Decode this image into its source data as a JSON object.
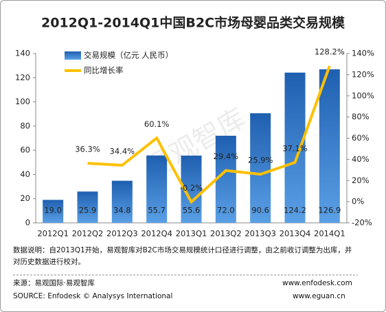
{
  "chart_data": {
    "type": "combo",
    "title": "2012Q1-2014Q1中国B2C市场母婴品类交易规模",
    "watermark": "易观智库",
    "categories": [
      "2012Q1",
      "2012Q2",
      "2012Q3",
      "2012Q4",
      "2013Q1",
      "2013Q2",
      "2013Q3",
      "2013Q4",
      "2014Q1"
    ],
    "series": [
      {
        "name": "交易规模（亿元 人民币）",
        "type": "bar",
        "color": "#2a72c4",
        "values": [
          19.0,
          25.9,
          34.8,
          55.7,
          55.6,
          72.0,
          90.6,
          124.2,
          126.9
        ],
        "value_labels": [
          "19.0",
          "25.9",
          "34.8",
          "55.7",
          "55.6",
          "72.0",
          "90.6",
          "124.2",
          "126.9"
        ]
      },
      {
        "name": "同比增长率",
        "type": "line",
        "color": "#ffc000",
        "axis": "y2",
        "values": [
          null,
          36.3,
          34.4,
          60.1,
          -0.2,
          29.4,
          25.9,
          37.1,
          128.2
        ],
        "value_labels": [
          null,
          "36.3%",
          "34.4%",
          "60.1%",
          "-0.2%",
          "29.4%",
          "25.9%",
          "37.1%",
          "128.2%"
        ]
      }
    ],
    "ylim": [
      0,
      140
    ],
    "yticks": [
      0,
      20,
      40,
      60,
      80,
      100,
      120,
      140
    ],
    "y2lim": [
      -20,
      140
    ],
    "y2ticks": [
      {
        "value": -20,
        "label": "-20%"
      },
      {
        "value": 0,
        "label": "0%"
      },
      {
        "value": 20,
        "label": "20%"
      },
      {
        "value": 40,
        "label": "40%"
      },
      {
        "value": 60,
        "label": "60%"
      },
      {
        "value": 80,
        "label": "80%"
      },
      {
        "value": 100,
        "label": "100%"
      },
      {
        "value": 120,
        "label": "120%"
      },
      {
        "value": 140,
        "label": "140%"
      }
    ],
    "legend": "top-left"
  },
  "notes": {
    "description": "数据说明：自2013Q1开始，易观智库对B2C市场交易规模统计口径进行调整，由之前收订调整为出库，并对历史数据进行校对。",
    "source": "来源：易观国际·易观智库",
    "url1": "www.enfodesk.com",
    "source_en": "SOURCE: Enfodesk © Analysys International",
    "url2": "www.eguan.cn"
  }
}
